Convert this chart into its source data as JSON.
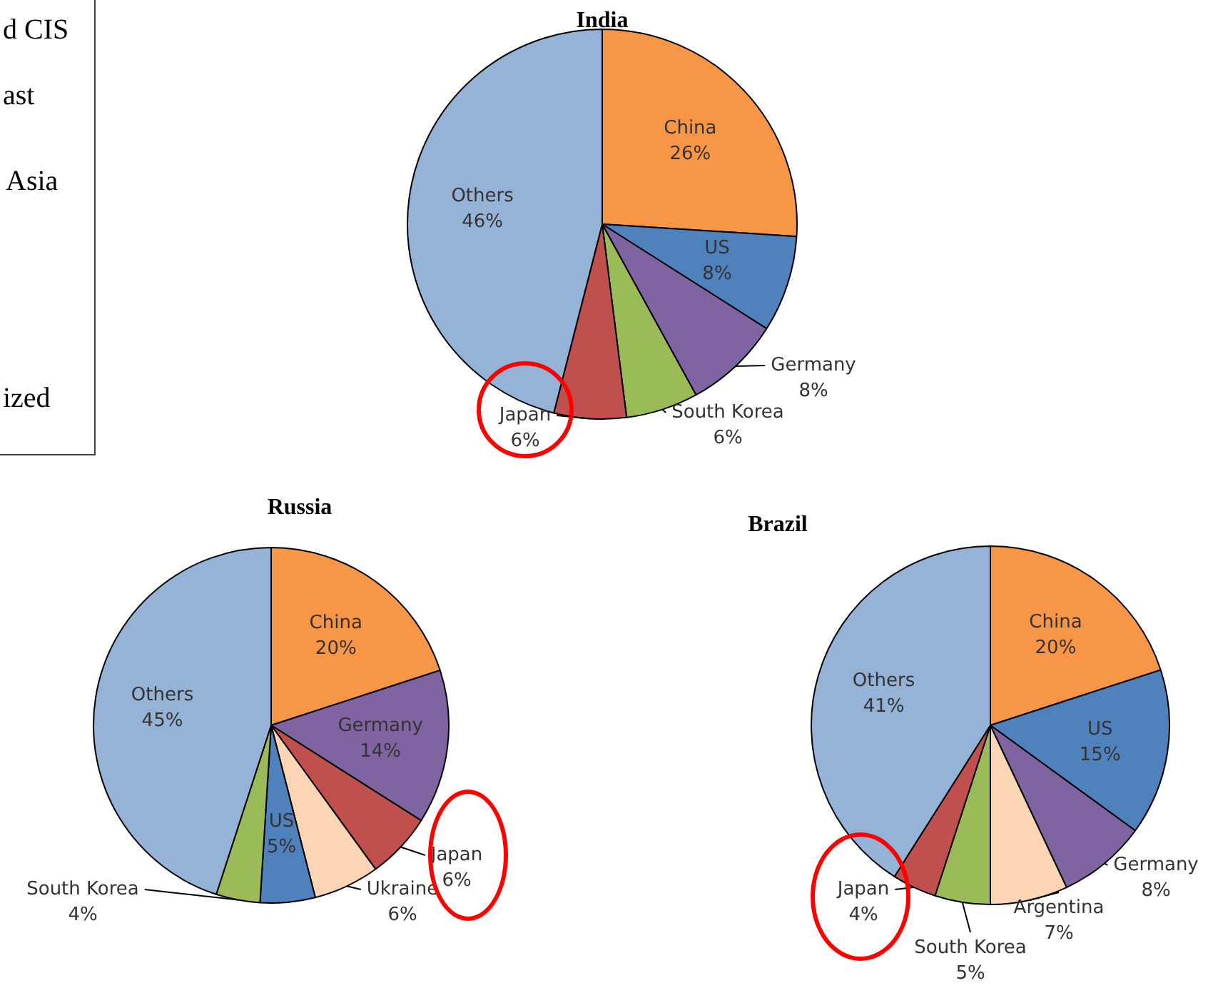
{
  "chart_data": [
    {
      "type": "other",
      "annotations": [
        "d CIS",
        "ast",
        "Asia",
        "ized"
      ]
    },
    {
      "type": "pie",
      "title": "India",
      "categories": [
        "China",
        "US",
        "Germany",
        "South Korea",
        "Japan",
        "Others"
      ],
      "values": [
        26,
        8,
        8,
        6,
        6,
        46
      ],
      "colors": [
        "#f79646",
        "#4f81bd",
        "#8064a2",
        "#9bbb59",
        "#c0504d",
        "#95b3d7"
      ],
      "value_labels": [
        "26%",
        "8%",
        "8%",
        "6%",
        "6%",
        "46%"
      ]
    },
    {
      "type": "pie",
      "title": "Russia",
      "categories": [
        "China",
        "Germany",
        "Japan",
        "Ukraine",
        "US",
        "South Korea",
        "Others"
      ],
      "values": [
        20,
        14,
        6,
        6,
        5,
        4,
        45
      ],
      "colors": [
        "#f79646",
        "#8064a2",
        "#c0504d",
        "#fcd5b5",
        "#4f81bd",
        "#9bbb59",
        "#95b3d7"
      ],
      "value_labels": [
        "20%",
        "14%",
        "6%",
        "6%",
        "5%",
        "4%",
        "45%"
      ]
    },
    {
      "type": "pie",
      "title": "Brazil",
      "categories": [
        "China",
        "US",
        "Germany",
        "Argentina",
        "South Korea",
        "Japan",
        "Others"
      ],
      "values": [
        20,
        15,
        8,
        7,
        5,
        4,
        41
      ],
      "colors": [
        "#f79646",
        "#4f81bd",
        "#8064a2",
        "#fcd5b5",
        "#9bbb59",
        "#c0504d",
        "#95b3d7"
      ],
      "value_labels": [
        "20%",
        "15%",
        "8%",
        "7%",
        "5%",
        "4%",
        "41%"
      ]
    }
  ]
}
